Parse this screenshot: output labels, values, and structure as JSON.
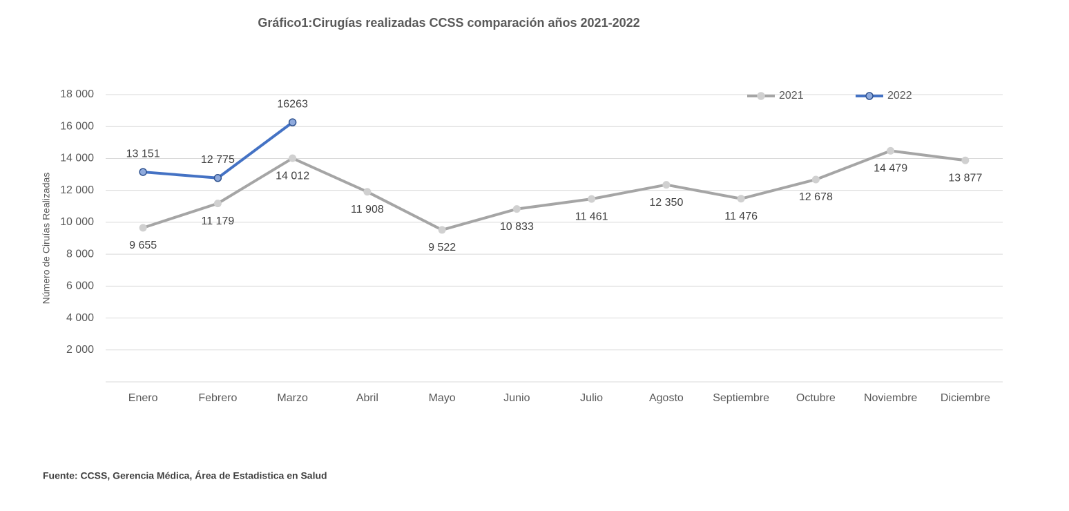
{
  "chart_data": {
    "type": "line",
    "title": "Gráfico1:Cirugías realizadas CCSS comparación años 2021-2022",
    "y_label": "Número de Ciruías Realizadas",
    "source": "Fuente: CCSS, Gerencia Médica, Área de Estadistica en Salud",
    "categories": [
      "Enero",
      "Febrero",
      "Marzo",
      "Abril",
      "Mayo",
      "Junio",
      "Julio",
      "Agosto",
      "Septiembre",
      "Octubre",
      "Noviembre",
      "Diciembre"
    ],
    "series": [
      {
        "name": "2021",
        "color": "#a5a5a5",
        "marker_color": "#d0d0d0",
        "label_position": "below",
        "values": [
          9655,
          11179,
          14012,
          11908,
          9522,
          10833,
          11461,
          12350,
          11476,
          12678,
          14479,
          13877
        ],
        "value_labels": [
          "9 655",
          "11 179",
          "14 012",
          "11 908",
          "9 522",
          "10 833",
          "11 461",
          "12 350",
          "11 476",
          "12 678",
          "14 479",
          "13 877"
        ]
      },
      {
        "name": "2022",
        "color": "#4472c4",
        "marker_color": "#8faadc",
        "label_position": "above",
        "values": [
          13151,
          12775,
          16263,
          null,
          null,
          null,
          null,
          null,
          null,
          null,
          null,
          null
        ],
        "value_labels": [
          "13 151",
          "12 775",
          "16263",
          null,
          null,
          null,
          null,
          null,
          null,
          null,
          null,
          null
        ]
      }
    ],
    "ylim": [
      0,
      18000
    ],
    "yticks": [
      {
        "value": 2000,
        "label": "2 000"
      },
      {
        "value": 4000,
        "label": "4 000"
      },
      {
        "value": 6000,
        "label": "6 000"
      },
      {
        "value": 8000,
        "label": "8 000"
      },
      {
        "value": 10000,
        "label": "10 000"
      },
      {
        "value": 12000,
        "label": "12 000"
      },
      {
        "value": 14000,
        "label": "14 000"
      },
      {
        "value": 16000,
        "label": "16 000"
      },
      {
        "value": 18000,
        "label": "18 000"
      }
    ],
    "grid": true,
    "legend": "top-right"
  }
}
